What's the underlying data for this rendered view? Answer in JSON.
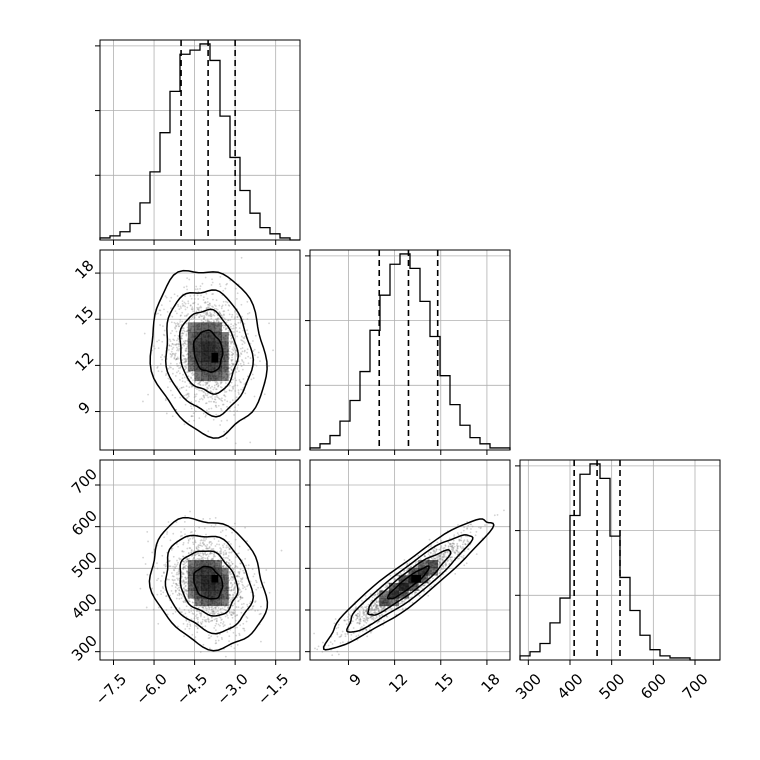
{
  "chart_data": {
    "type": "corner",
    "title": "",
    "parameters": [
      {
        "xlim": [
          -8.0,
          -0.6
        ],
        "ticks": [
          -7.5,
          -6.0,
          -4.5,
          -3.0,
          -1.5
        ],
        "tick_labels": [
          "−7.5",
          "−6.0",
          "−4.5",
          "−3.0",
          "−1.5"
        ],
        "quantiles": [
          -5.0,
          -4.0,
          -3.0
        ],
        "median": -4.0
      },
      {
        "xlim": [
          6.5,
          19.5
        ],
        "ticks": [
          9,
          12,
          15,
          18
        ],
        "tick_labels": [
          "9",
          "12",
          "15",
          "18"
        ],
        "quantiles": [
          11.0,
          12.9,
          14.8
        ],
        "median": 12.9
      },
      {
        "xlim": [
          280,
          760
        ],
        "ticks": [
          300,
          400,
          500,
          600,
          700
        ],
        "tick_labels": [
          "300",
          "400",
          "500",
          "600",
          "700"
        ],
        "quantiles": [
          410,
          465,
          520
        ],
        "median": 465
      }
    ],
    "histograms": [
      {
        "edges": [
          -8.0,
          -7.63,
          -7.26,
          -6.89,
          -6.52,
          -6.15,
          -5.78,
          -5.41,
          -5.04,
          -4.67,
          -4.3,
          -3.93,
          -3.56,
          -3.19,
          -2.82,
          -2.45,
          -2.08,
          -1.71,
          -1.34,
          -0.97,
          -0.6
        ],
        "counts": [
          1,
          2,
          4,
          8,
          18,
          33,
          52,
          72,
          90,
          92,
          95,
          87,
          60,
          40,
          24,
          13,
          6,
          3,
          1,
          0
        ]
      },
      {
        "edges": [
          6.5,
          7.15,
          7.8,
          8.45,
          9.1,
          9.75,
          10.4,
          11.05,
          11.7,
          12.35,
          13.0,
          13.65,
          14.3,
          14.95,
          15.6,
          16.25,
          16.9,
          17.55,
          18.2,
          18.85,
          19.5
        ],
        "counts": [
          1,
          3,
          7,
          14,
          24,
          38,
          58,
          75,
          90,
          95,
          88,
          72,
          55,
          36,
          22,
          12,
          6,
          3,
          1,
          1
        ]
      },
      {
        "edges": [
          280,
          304,
          328,
          352,
          376,
          400,
          424,
          448,
          472,
          496,
          520,
          544,
          568,
          592,
          616,
          640,
          664,
          688,
          712,
          736,
          760
        ],
        "counts": [
          2,
          4,
          8,
          18,
          30,
          70,
          90,
          95,
          88,
          60,
          40,
          24,
          12,
          5,
          2,
          1,
          1,
          0,
          0,
          0
        ]
      }
    ],
    "pairs": [
      {
        "row": 1,
        "col": 0,
        "ylim": [
          6.5,
          19.5
        ],
        "yticks": [
          9,
          12,
          15,
          18
        ],
        "ytick_labels": [
          "9",
          "12",
          "15",
          "18"
        ],
        "center": [
          -4.0,
          12.9
        ],
        "sigma": [
          0.75,
          1.9
        ],
        "rho": -0.12,
        "peak_cell": [
          -3.75,
          12.5
        ],
        "contour_levels_sigma": [
          0.5,
          1.0,
          1.5,
          2.0
        ]
      },
      {
        "row": 2,
        "col": 0,
        "ylim": [
          280,
          760
        ],
        "yticks": [
          300,
          400,
          500,
          600,
          700
        ],
        "ytick_labels": [
          "300",
          "400",
          "500",
          "600",
          "700"
        ],
        "center": [
          -4.0,
          465
        ],
        "sigma": [
          0.75,
          55
        ],
        "rho": -0.2,
        "peak_cell": [
          -3.75,
          475
        ],
        "contour_levels_sigma": [
          0.5,
          1.0,
          1.5,
          2.0
        ]
      },
      {
        "row": 2,
        "col": 1,
        "ylim": [
          280,
          760
        ],
        "yticks": [
          300,
          400,
          500,
          600,
          700
        ],
        "ytick_labels": [
          "300",
          "400",
          "500",
          "600",
          "700"
        ],
        "center": [
          12.9,
          465
        ],
        "sigma": [
          1.9,
          55
        ],
        "rho": 0.93,
        "peak_cell": [
          13.4,
          475
        ],
        "contour_levels_sigma": [
          0.5,
          1.0,
          1.5,
          2.0
        ]
      }
    ],
    "grid": true,
    "colors": {
      "line": "#000000",
      "grid": "#b0b0b0",
      "points": "#808080",
      "density": "#000000"
    }
  }
}
